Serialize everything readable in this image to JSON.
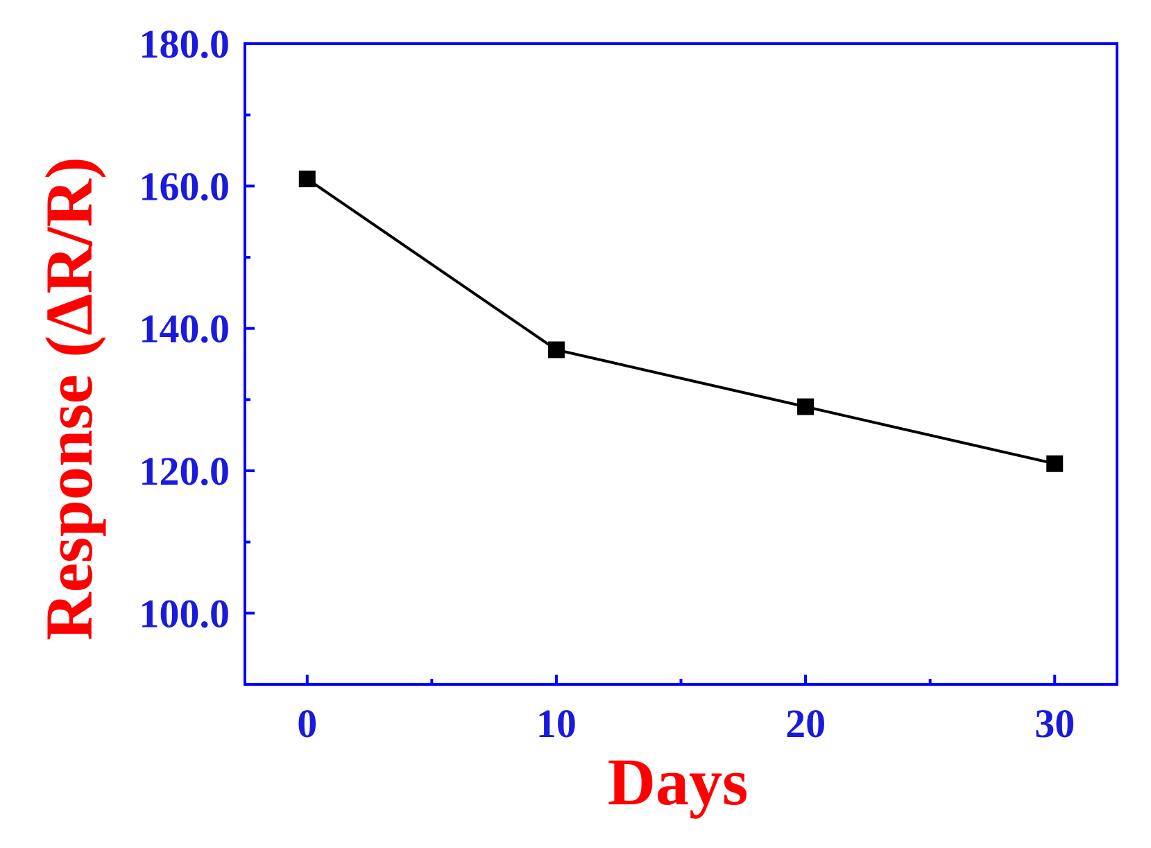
{
  "chart_data": {
    "type": "line",
    "title": "",
    "xlabel": "Days",
    "ylabel": "Response (ΔR/R)",
    "xlim": [
      -2.5,
      32.5
    ],
    "ylim": [
      90,
      180
    ],
    "x_ticks": [
      0,
      10,
      20,
      30
    ],
    "x_tick_labels": [
      "0",
      "10",
      "20",
      "30"
    ],
    "x_minor_ticks": [
      5,
      15,
      25
    ],
    "y_ticks": [
      100,
      120,
      140,
      160,
      180
    ],
    "y_tick_labels": [
      "100.0",
      "120.0",
      "140.0",
      "160.0",
      "180.0"
    ],
    "y_minor_ticks": [
      110,
      130,
      150,
      170
    ],
    "grid": false,
    "legend": "none",
    "series": [
      {
        "x": [
          0,
          10,
          20,
          30
        ],
        "values": [
          161,
          137,
          129,
          121
        ],
        "marker": "square",
        "color": "#000000"
      }
    ],
    "colors": {
      "axis": "#0000ff",
      "tick_label": "#1a1adc",
      "axis_title": "#ff0000",
      "line": "#000000"
    }
  }
}
